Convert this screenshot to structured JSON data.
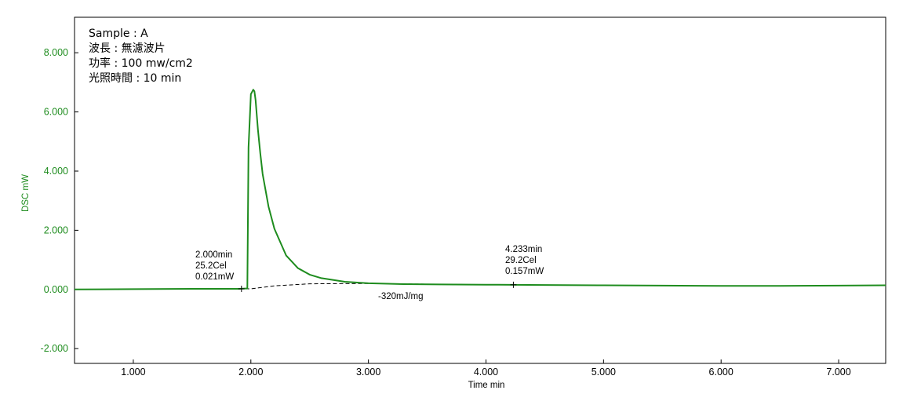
{
  "info": {
    "lines": [
      "Sample : A",
      "波長 : 無濾波片",
      "功率 : 100 mw/cm2",
      "光照時間 : 10 min"
    ]
  },
  "colors": {
    "series": "#1e8c1e",
    "axis": "#000000",
    "baseline": "#000000"
  },
  "chart_data": {
    "type": "line",
    "xlabel": "Time min",
    "ylabel": "DSC mW",
    "xlim": [
      0.5,
      7.4
    ],
    "ylim": [
      -2.5,
      9.2
    ],
    "x_ticks": [
      1.0,
      2.0,
      3.0,
      4.0,
      5.0,
      6.0,
      7.0
    ],
    "x_tick_labels": [
      "1.000",
      "2.000",
      "3.000",
      "4.000",
      "5.000",
      "6.000",
      "7.000"
    ],
    "y_ticks": [
      -2.0,
      0.0,
      2.0,
      4.0,
      6.0,
      8.0
    ],
    "y_tick_labels": [
      "-2.000",
      "0.000",
      "2.000",
      "4.000",
      "6.000",
      "8.000"
    ],
    "grid": false,
    "series": [
      {
        "x": [
          0.5,
          1.0,
          1.5,
          1.9,
          1.95,
          1.97,
          1.98,
          2.0,
          2.02,
          2.03,
          2.04,
          2.05,
          2.06,
          2.08,
          2.1,
          2.15,
          2.2,
          2.3,
          2.4,
          2.5,
          2.6,
          2.8,
          3.0,
          3.3,
          3.6,
          4.0,
          4.23,
          4.5,
          5.0,
          5.5,
          6.0,
          6.5,
          7.0,
          7.4
        ],
        "y": [
          0.0,
          0.01,
          0.02,
          0.02,
          0.03,
          0.03,
          4.8,
          6.6,
          6.75,
          6.7,
          6.4,
          5.9,
          5.4,
          4.6,
          3.9,
          2.8,
          2.05,
          1.15,
          0.72,
          0.5,
          0.38,
          0.26,
          0.21,
          0.18,
          0.17,
          0.16,
          0.157,
          0.15,
          0.14,
          0.13,
          0.12,
          0.12,
          0.13,
          0.14
        ]
      }
    ],
    "baseline": {
      "x": [
        1.9,
        2.0,
        2.2,
        2.5,
        3.0,
        3.5,
        4.0,
        4.23
      ],
      "y": [
        0.021,
        0.021,
        0.12,
        0.19,
        0.2,
        0.18,
        0.16,
        0.157
      ]
    },
    "markers": [
      {
        "x": 1.92,
        "y": 0.021
      },
      {
        "x": 4.233,
        "y": 0.157
      }
    ],
    "annotations": [
      {
        "lines": [
          "2.000min",
          "25.2Cel",
          "0.021mW"
        ],
        "x": 2.0,
        "y": 0.021
      },
      {
        "lines": [
          "4.233min",
          "29.2Cel",
          "0.157mW"
        ],
        "x": 4.233,
        "y": 0.157
      }
    ],
    "area_label": "-320mJ/mg"
  }
}
